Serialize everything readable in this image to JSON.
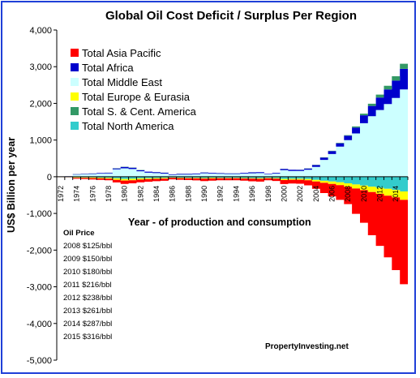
{
  "chart_data": {
    "type": "area",
    "title": "Global Oil Cost Deficit / Surplus Per Region",
    "xlabel": "Year - of production and consumption",
    "ylabel": "US$ Billion per year",
    "ylim": [
      -5000,
      4000
    ],
    "xlim": [
      1972,
      2015
    ],
    "yticks": [
      "4,000",
      "3,000",
      "2,000",
      "1,000",
      "0",
      "-1,000",
      "-2,000",
      "-3,000",
      "-4,000",
      "-5,000"
    ],
    "ytick_values": [
      4000,
      3000,
      2000,
      1000,
      0,
      -1000,
      -2000,
      -3000,
      -4000,
      -5000
    ],
    "xticks": [
      "1972",
      "1974",
      "1976",
      "1978",
      "1980",
      "1982",
      "1984",
      "1986",
      "1988",
      "1990",
      "1992",
      "1994",
      "1996",
      "1998",
      "2000",
      "2002",
      "2004",
      "2006",
      "2008",
      "2010",
      "2012",
      "2014"
    ],
    "grid": false,
    "legend_position": "top-left",
    "years": [
      1972,
      1973,
      1974,
      1975,
      1976,
      1977,
      1978,
      1979,
      1980,
      1981,
      1982,
      1983,
      1984,
      1985,
      1986,
      1987,
      1988,
      1989,
      1990,
      1991,
      1992,
      1993,
      1994,
      1995,
      1996,
      1997,
      1998,
      1999,
      2000,
      2001,
      2002,
      2003,
      2004,
      2005,
      2006,
      2007,
      2008,
      2009,
      2010,
      2011,
      2012,
      2013,
      2014,
      2015
    ],
    "series": [
      {
        "name": "Total Asia Pacific",
        "color": "#ff0000",
        "values": [
          -5,
          -8,
          -25,
          -30,
          -35,
          -40,
          -45,
          -70,
          -90,
          -85,
          -75,
          -70,
          -65,
          -60,
          -40,
          -45,
          -50,
          -55,
          -65,
          -60,
          -55,
          -55,
          -55,
          -60,
          -70,
          -75,
          -55,
          -65,
          -110,
          -100,
          -110,
          -140,
          -200,
          -280,
          -340,
          -400,
          -470,
          -690,
          -890,
          -1180,
          -1420,
          -1680,
          -1980,
          -2300
        ]
      },
      {
        "name": "Total Africa",
        "color": "#0000cc",
        "values": [
          2,
          3,
          10,
          12,
          14,
          16,
          18,
          28,
          40,
          38,
          32,
          28,
          26,
          24,
          16,
          18,
          18,
          18,
          22,
          20,
          18,
          18,
          18,
          20,
          24,
          24,
          16,
          20,
          34,
          30,
          28,
          35,
          48,
          62,
          78,
          92,
          118,
          160,
          215,
          280,
          340,
          400,
          470,
          560
        ]
      },
      {
        "name": "Total Middle East",
        "color": "#ccffff",
        "values": [
          5,
          10,
          60,
          65,
          75,
          85,
          90,
          200,
          230,
          210,
          150,
          110,
          100,
          85,
          50,
          60,
          60,
          70,
          95,
          85,
          80,
          75,
          75,
          85,
          95,
          100,
          65,
          85,
          180,
          160,
          160,
          190,
          270,
          460,
          620,
          820,
          1000,
          1180,
          1460,
          1650,
          1820,
          1980,
          2150,
          2380
        ]
      },
      {
        "name": "Total Europe & Eurasia",
        "color": "#ffff00",
        "values": [
          -2,
          -3,
          -15,
          -15,
          -18,
          -20,
          -22,
          -40,
          -45,
          -40,
          -32,
          -26,
          -22,
          -20,
          -10,
          -12,
          -12,
          -14,
          -18,
          -15,
          -12,
          -12,
          -12,
          -14,
          -16,
          -18,
          -10,
          -15,
          -30,
          -28,
          -26,
          -30,
          -45,
          -55,
          -65,
          -80,
          -95,
          -110,
          -125,
          -145,
          -165,
          -185,
          -205,
          -230
        ]
      },
      {
        "name": "Total S. & Cent. America",
        "color": "#339966",
        "values": [
          0,
          0,
          2,
          2,
          2,
          2,
          2,
          3,
          5,
          4,
          3,
          2,
          2,
          2,
          1,
          1,
          1,
          1,
          2,
          2,
          1,
          1,
          1,
          2,
          2,
          2,
          1,
          2,
          3,
          3,
          3,
          4,
          6,
          8,
          10,
          12,
          16,
          30,
          45,
          60,
          80,
          100,
          120,
          140
        ]
      },
      {
        "name": "Total North America",
        "color": "#33cccc",
        "values": [
          -2,
          -3,
          -15,
          -18,
          -20,
          -25,
          -28,
          -45,
          -60,
          -55,
          -45,
          -40,
          -35,
          -30,
          -22,
          -25,
          -28,
          -30,
          -35,
          -32,
          -30,
          -30,
          -30,
          -35,
          -38,
          -40,
          -30,
          -35,
          -60,
          -55,
          -55,
          -65,
          -85,
          -110,
          -130,
          -150,
          -180,
          -210,
          -240,
          -270,
          -300,
          -330,
          -360,
          -400
        ]
      }
    ]
  },
  "oil_price_table": {
    "heading": "Oil Price",
    "rows": [
      "2008  $125/bbl",
      "2009  $150/bbl",
      "2010 $180/bbl",
      "2011 $216/bbl",
      "2012 $238/bbl",
      "2013 $261/bbl",
      "2014 $287/bbl",
      "2015 $316/bbl"
    ]
  },
  "credit": "PropertyInvesting.net",
  "colors": {
    "frame_border": "#1f3fd8",
    "axis": "#000000",
    "background": "#ffffff"
  }
}
